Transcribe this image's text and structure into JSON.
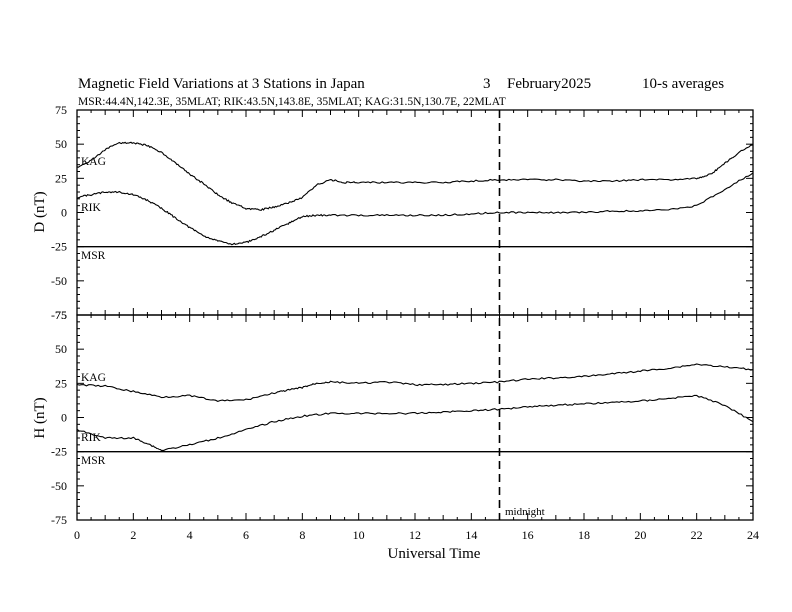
{
  "title": {
    "main": "Magnetic Field Variations at 3 Stations in Japan",
    "day": "3",
    "date": "February2025",
    "averaging": "10-s averages",
    "stations": "MSR:44.4N,142.3E, 35MLAT;  RIK:43.5N,143.8E, 35MLAT;  KAG:31.5N,130.7E, 22MLAT"
  },
  "xlabel": "Universal Time",
  "annotation": "midnight",
  "chart_data": [
    {
      "type": "line",
      "panel": "D",
      "ylabel": "D (nT)",
      "xlim": [
        0,
        24
      ],
      "ylim": [
        -75,
        75
      ],
      "x_ticks": [
        0,
        2,
        4,
        6,
        8,
        10,
        12,
        14,
        16,
        18,
        20,
        22,
        24
      ],
      "y_ticks": [
        75,
        50,
        25,
        0,
        -25,
        -50,
        -75
      ],
      "midnight_ut": 15,
      "series": [
        {
          "name": "KAG",
          "x": [
            0,
            0.5,
            1,
            1.5,
            2,
            2.5,
            3,
            3.5,
            4,
            4.5,
            5,
            5.5,
            6,
            6.5,
            7,
            7.5,
            8,
            8.5,
            9,
            9.5,
            10,
            11,
            12,
            13,
            14,
            15,
            16,
            17,
            18,
            19,
            20,
            21,
            22,
            22.5,
            23,
            23.5,
            24
          ],
          "y": [
            33,
            38,
            46,
            51,
            51,
            49,
            44,
            36,
            28,
            21,
            13,
            7,
            3,
            2,
            4,
            7,
            11,
            20,
            24,
            22,
            22,
            22,
            22,
            22,
            23,
            24,
            24,
            24,
            23,
            23,
            24,
            24,
            25,
            28,
            36,
            44,
            50
          ]
        },
        {
          "name": "RIK",
          "x": [
            0,
            0.5,
            1,
            1.5,
            2,
            2.5,
            3,
            3.5,
            4,
            4.5,
            5,
            5.5,
            6,
            6.5,
            7,
            7.5,
            8,
            8.5,
            9,
            10,
            11,
            12,
            13,
            14,
            15,
            16,
            17,
            18,
            19,
            20,
            21,
            22,
            23,
            24
          ],
          "y": [
            11,
            13,
            15,
            15,
            13,
            9,
            3,
            -4,
            -11,
            -17,
            -21,
            -23,
            -22,
            -18,
            -13,
            -8,
            -3,
            -2,
            -2,
            -2,
            -2,
            -2,
            -2,
            -1,
            0,
            0,
            0,
            0,
            1,
            1,
            2,
            5,
            17,
            29
          ]
        },
        {
          "name": "MSR",
          "x": [],
          "y": []
        }
      ]
    },
    {
      "type": "line",
      "panel": "H",
      "ylabel": "H (nT)",
      "xlim": [
        0,
        24
      ],
      "ylim": [
        -75,
        75
      ],
      "x_ticks": [
        0,
        2,
        4,
        6,
        8,
        10,
        12,
        14,
        16,
        18,
        20,
        22,
        24
      ],
      "y_ticks": [
        75,
        50,
        25,
        0,
        -25,
        -50,
        -75
      ],
      "midnight_ut": 15,
      "series": [
        {
          "name": "KAG",
          "x": [
            0,
            1,
            2,
            3,
            4,
            5,
            6,
            7,
            7.5,
            8,
            8.5,
            9,
            10,
            11,
            12,
            13,
            14,
            15,
            16,
            17,
            18,
            19,
            20,
            21,
            22,
            23,
            24
          ],
          "y": [
            24,
            23,
            19,
            15,
            16,
            12,
            13,
            18,
            20,
            22,
            25,
            26,
            25,
            26,
            24,
            24,
            25,
            26,
            28,
            29,
            30,
            32,
            34,
            36,
            39,
            37,
            35
          ]
        },
        {
          "name": "RIK",
          "x": [
            0,
            1,
            2,
            2.5,
            3,
            4,
            5,
            6,
            7,
            8,
            9,
            10,
            11,
            12,
            13,
            14,
            15,
            16,
            17,
            18,
            19,
            20,
            21,
            22,
            23,
            24
          ],
          "y": [
            -9,
            -15,
            -15,
            -19,
            -24,
            -20,
            -15,
            -9,
            -3,
            1,
            3,
            3,
            3,
            3,
            4,
            5,
            6,
            8,
            9,
            10,
            11,
            12,
            14,
            16,
            9,
            -3
          ]
        },
        {
          "name": "MSR",
          "x": [],
          "y": []
        }
      ]
    }
  ]
}
